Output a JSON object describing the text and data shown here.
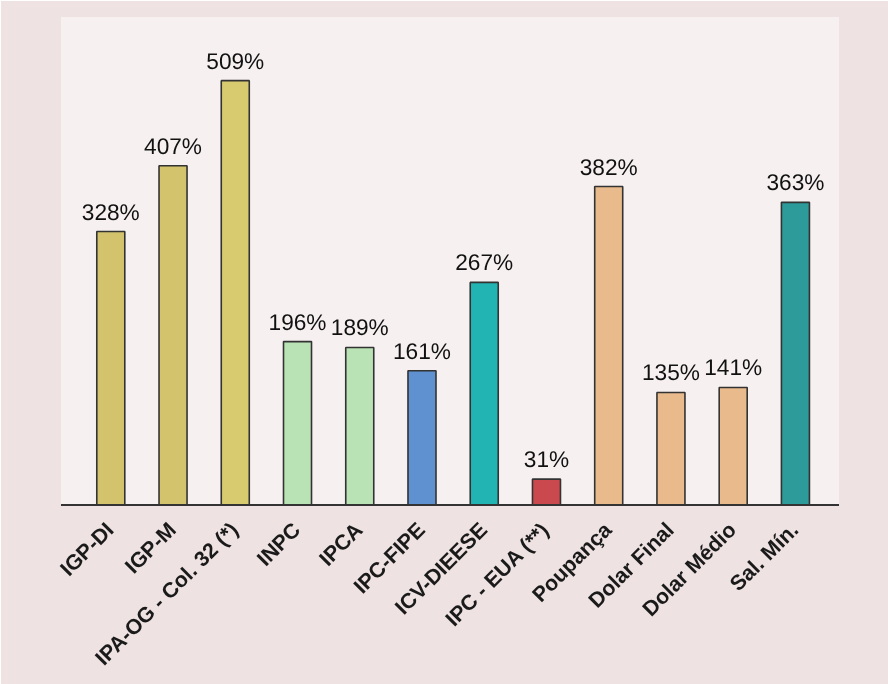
{
  "chart_data": {
    "type": "bar",
    "categories": [
      "IGP-DI",
      "IGP-M",
      "IPA-OG - Col. 32 (*)",
      "INPC",
      "IPCA",
      "IPC-FIPE",
      "ICV-DIEESE",
      "IPC - EUA (**)",
      "Poupança",
      "Dolar Final",
      "Dolar Médio",
      "Sal. Mín."
    ],
    "values": [
      328,
      407,
      509,
      196,
      189,
      161,
      267,
      31,
      382,
      135,
      141,
      363
    ],
    "value_labels": [
      "328%",
      "407%",
      "509%",
      "196%",
      "189%",
      "161%",
      "267%",
      "31%",
      "382%",
      "135%",
      "141%",
      "363%"
    ],
    "colors": [
      "#d2c36c",
      "#d2c36c",
      "#d8ca6e",
      "#b9e3b5",
      "#b9e3b5",
      "#5f90cf",
      "#22b3b3",
      "#c9494f",
      "#e9bb8c",
      "#e9bb8c",
      "#e9bb8c",
      "#2e9b9b"
    ],
    "tick_labels": "x"
  }
}
